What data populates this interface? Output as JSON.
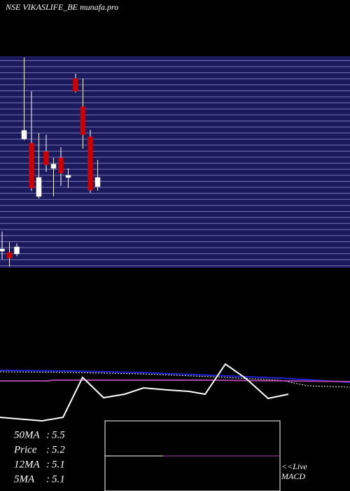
{
  "title": "NSE VIKASLIFE_BE munafa.pro",
  "chart_data": [
    {
      "type": "candlestick",
      "open": [
        4.22,
        4.2,
        4.18,
        5.82,
        5.76,
        5.0,
        5.64,
        5.4,
        5.55,
        5.27,
        6.68,
        6.28,
        5.85,
        5.14
      ],
      "high": [
        4.5,
        4.35,
        4.33,
        6.98,
        6.5,
        5.9,
        5.88,
        5.55,
        5.7,
        5.4,
        6.75,
        6.68,
        5.95,
        5.52
      ],
      "low": [
        4.1,
        4.0,
        4.15,
        5.8,
        5.08,
        4.97,
        5.35,
        5.0,
        5.15,
        5.12,
        6.48,
        5.68,
        5.05,
        5.08
      ],
      "close": [
        4.25,
        4.12,
        4.28,
        5.94,
        5.12,
        5.27,
        5.45,
        5.46,
        5.33,
        5.3,
        6.5,
        5.88,
        5.09,
        5.27
      ],
      "ylim": [
        4.0,
        7.0
      ],
      "up_color": "#ffffff",
      "down_color": "#cc0000"
    },
    {
      "type": "line",
      "xlim": [
        0,
        500
      ],
      "ylim": [
        0,
        100
      ],
      "series": [
        {
          "color": "#2222dd",
          "x": [
            0,
            100,
            200,
            300,
            400,
            500
          ],
          "values": [
            72,
            71,
            69,
            65,
            61,
            55
          ]
        },
        {
          "color": "#ffffff",
          "dash": true,
          "x": [
            0,
            100,
            200,
            300,
            400,
            440,
            500
          ],
          "values": [
            70,
            69,
            67,
            63,
            58,
            50,
            48
          ]
        },
        {
          "color": "#aa44aa",
          "x": [
            0,
            70,
            75,
            300,
            500
          ],
          "values": [
            57,
            57,
            58,
            58,
            56
          ]
        },
        {
          "color": "#ffffff",
          "x": [
            0,
            60,
            90,
            118,
            148,
            178,
            205,
            240,
            270,
            293,
            322,
            352,
            383,
            412
          ],
          "values": [
            5,
            0,
            5,
            62,
            33,
            38,
            47,
            44,
            42,
            38,
            81,
            60,
            32,
            38
          ]
        }
      ]
    }
  ],
  "indicators": [
    {
      "label": "50MA",
      "value": 5.5
    },
    {
      "label": "Price",
      "value": 5.2
    },
    {
      "label": "12MA",
      "value": 5.1
    },
    {
      "label": "5MA",
      "value": 5.1
    }
  ],
  "macd": {
    "live": "<<Live",
    "label": "MACD"
  }
}
